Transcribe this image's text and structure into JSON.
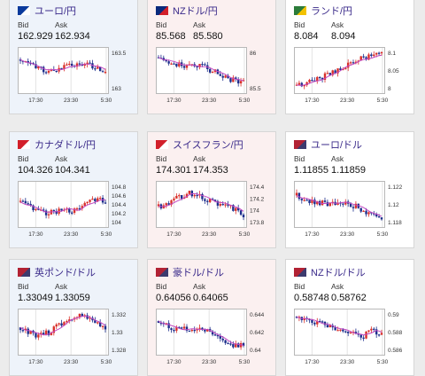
{
  "labels": {
    "bid": "Bid",
    "ask": "Ask"
  },
  "colors": {
    "up": "#d9302a",
    "down": "#1d2f8c",
    "ma": "#c248c2",
    "title": "#3a2a8a"
  },
  "cards": [
    {
      "title": "ユーロ/円",
      "flag": "eu-flag-icon",
      "bid": "162.929",
      "ask": "162.934",
      "y_ticks": [
        "163.5",
        "163"
      ],
      "x_ticks": [
        "17:30",
        "23:30",
        "5:30"
      ],
      "bg": "blue"
    },
    {
      "title": "NZドル/円",
      "flag": "nz-flag-icon",
      "bid": "85.568",
      "ask": "85.580",
      "y_ticks": [
        "86",
        "85.5"
      ],
      "x_ticks": [
        "17:30",
        "23:30",
        "5:30"
      ],
      "bg": "pink"
    },
    {
      "title": "ランド/円",
      "flag": "za-flag-icon",
      "bid": "8.084",
      "ask": "8.094",
      "y_ticks": [
        "8.1",
        "8.05",
        "8"
      ],
      "x_ticks": [
        "17:30",
        "23:30",
        "5:30"
      ],
      "bg": "white"
    },
    {
      "title": "カナダドル/円",
      "flag": "ca-flag-icon",
      "bid": "104.326",
      "ask": "104.341",
      "y_ticks": [
        "104.8",
        "104.6",
        "104.4",
        "104.2",
        "104"
      ],
      "x_ticks": [
        "17:30",
        "23:30",
        "5:30"
      ],
      "bg": "blue"
    },
    {
      "title": "スイスフラン/円",
      "flag": "ch-flag-icon",
      "bid": "174.301",
      "ask": "174.353",
      "y_ticks": [
        "174.4",
        "174.2",
        "174",
        "173.8"
      ],
      "x_ticks": [
        "17:30",
        "23:30",
        "5:30"
      ],
      "bg": "pink"
    },
    {
      "title": "ユーロ/ドル",
      "flag": "us-flag-icon",
      "bid": "1.11855",
      "ask": "1.11859",
      "y_ticks": [
        "1.122",
        "1.12",
        "1.118"
      ],
      "x_ticks": [
        "17:30",
        "23:30",
        "5:30"
      ],
      "bg": "white"
    },
    {
      "title": "英ポンド/ドル",
      "flag": "us-flag-icon",
      "bid": "1.33049",
      "ask": "1.33059",
      "y_ticks": [
        "1.332",
        "1.33",
        "1.328"
      ],
      "x_ticks": [
        "17:30",
        "23:30",
        "5:30"
      ],
      "bg": "blue"
    },
    {
      "title": "豪ドル/ドル",
      "flag": "us-flag-icon",
      "bid": "0.64056",
      "ask": "0.64065",
      "y_ticks": [
        "0.644",
        "0.642",
        "0.64"
      ],
      "x_ticks": [
        "17:30",
        "23:30",
        "5:30"
      ],
      "bg": "pink"
    },
    {
      "title": "NZドル/ドル",
      "flag": "us-flag-icon",
      "bid": "0.58748",
      "ask": "0.58762",
      "y_ticks": [
        "0.59",
        "0.588",
        "0.586"
      ],
      "x_ticks": [
        "17:30",
        "23:30",
        "5:30"
      ],
      "bg": "white"
    }
  ]
}
